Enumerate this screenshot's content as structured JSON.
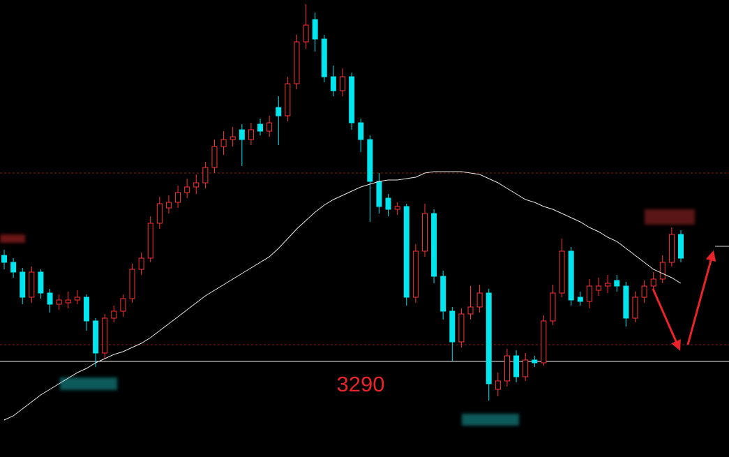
{
  "chart_data": {
    "type": "candlestick",
    "categories": [
      null,
      null,
      null,
      null,
      null,
      null,
      null,
      null,
      null,
      null,
      null,
      null,
      null,
      null,
      null,
      null,
      null,
      null,
      null,
      null,
      null,
      null,
      null,
      null,
      null,
      null,
      null,
      null,
      null,
      null,
      null,
      null,
      null,
      null,
      null,
      null,
      null,
      null,
      null,
      null,
      null,
      null,
      null,
      null,
      null,
      null,
      null,
      null,
      null,
      null,
      null,
      null,
      null,
      null,
      null,
      null,
      null,
      null,
      null,
      null,
      null,
      null,
      null,
      null,
      null,
      null,
      null,
      null,
      null,
      null,
      null,
      null,
      null,
      null,
      null
    ],
    "open": [
      3366,
      3361,
      3354,
      3336,
      3354,
      3339,
      3331,
      3332,
      3334,
      3336,
      3319,
      3296,
      3321,
      3326,
      3335,
      3356,
      3364,
      3389,
      3400,
      3404,
      3411,
      3415,
      3418,
      3429,
      3444,
      3449,
      3456,
      3449,
      3460,
      3455,
      3472,
      3466,
      3489,
      3519,
      3535,
      3521,
      3494,
      3484,
      3494,
      3461,
      3449,
      3419,
      3407,
      3399,
      3401,
      3336,
      3369,
      3396,
      3351,
      3326,
      3304,
      3324,
      3329,
      3339,
      3270,
      3276,
      3294,
      3279,
      3291,
      3289,
      3319,
      3339,
      3369,
      3336,
      3333,
      3341,
      3344,
      3348,
      3344,
      3321,
      3336,
      3344,
      3349,
      3361,
      3381
    ],
    "high": [
      3370,
      3364,
      3357,
      3358,
      3356,
      3342,
      3338,
      3340,
      3341,
      3338,
      3321,
      3324,
      3330,
      3338,
      3360,
      3368,
      3394,
      3408,
      3409,
      3416,
      3421,
      3424,
      3433,
      3449,
      3455,
      3458,
      3460,
      3461,
      3464,
      3466,
      3480,
      3494,
      3524,
      3546,
      3540,
      3524,
      3502,
      3500,
      3497,
      3464,
      3452,
      3425,
      3410,
      3404,
      3403,
      3374,
      3403,
      3399,
      3355,
      3329,
      3328,
      3344,
      3345,
      3342,
      3282,
      3299,
      3298,
      3296,
      3294,
      3323,
      3345,
      3378,
      3372,
      3340,
      3349,
      3350,
      3352,
      3352,
      3347,
      3340,
      3348,
      3354,
      3366,
      3386,
      3384
    ],
    "low": [
      3356,
      3350,
      3331,
      3332,
      3335,
      3325,
      3327,
      3328,
      3331,
      3312,
      3286,
      3292,
      3318,
      3322,
      3332,
      3352,
      3361,
      3385,
      3396,
      3400,
      3407,
      3410,
      3414,
      3425,
      3438,
      3444,
      3430,
      3445,
      3452,
      3451,
      3445,
      3462,
      3485,
      3514,
      3512,
      3490,
      3480,
      3480,
      3456,
      3440,
      3390,
      3396,
      3394,
      3395,
      3330,
      3332,
      3365,
      3346,
      3320,
      3290,
      3300,
      3320,
      3325,
      3262,
      3265,
      3272,
      3275,
      3276,
      3286,
      3287,
      3316,
      3336,
      3330,
      3330,
      3328,
      3337,
      3339,
      3340,
      3315,
      3318,
      3332,
      3340,
      3346,
      3358,
      3361
    ],
    "close": [
      3361,
      3354,
      3336,
      3354,
      3339,
      3331,
      3334,
      3334,
      3336,
      3319,
      3296,
      3321,
      3326,
      3335,
      3356,
      3364,
      3389,
      3403,
      3404,
      3411,
      3415,
      3418,
      3429,
      3444,
      3449,
      3451,
      3449,
      3456,
      3455,
      3461,
      3466,
      3489,
      3519,
      3531,
      3521,
      3494,
      3484,
      3494,
      3461,
      3449,
      3419,
      3401,
      3399,
      3401,
      3336,
      3369,
      3396,
      3351,
      3326,
      3304,
      3324,
      3329,
      3339,
      3274,
      3276,
      3294,
      3279,
      3291,
      3289,
      3319,
      3339,
      3369,
      3334,
      3333,
      3344,
      3344,
      3346,
      3344,
      3321,
      3336,
      3344,
      3349,
      3361,
      3381,
      3364
    ],
    "up_color": "#ff3232",
    "down_color": "#00e5ee",
    "line": {
      "color": "#e8e8e8",
      "values": [
        3248,
        3251,
        3256,
        3261,
        3266,
        3270,
        3274,
        3278,
        3282,
        3285,
        3289,
        3292,
        3295,
        3297,
        3300,
        3303,
        3307,
        3312,
        3317,
        3322,
        3327,
        3332,
        3337,
        3341,
        3345,
        3349,
        3353,
        3357,
        3361,
        3365,
        3371,
        3378,
        3385,
        3391,
        3397,
        3402,
        3406,
        3409,
        3412,
        3415,
        3417,
        3419,
        3420,
        3420,
        3421,
        3422,
        3425,
        3426,
        3426,
        3426,
        3426,
        3425,
        3424,
        3421,
        3418,
        3414,
        3410,
        3406,
        3404,
        3401,
        3399,
        3396,
        3393,
        3390,
        3386,
        3383,
        3379,
        3376,
        3371,
        3366,
        3361,
        3356,
        3353,
        3350,
        3346
      ]
    },
    "dashed_lines": [
      {
        "value": 3425,
        "color": "#8b1a1a"
      },
      {
        "value": 3302,
        "color": "#8b1a1a"
      }
    ],
    "reference_line": {
      "value": 3290,
      "color": "#f0f0f0",
      "label_color": "#e8242a"
    },
    "ylim": [
      3221.5,
      3549
    ]
  }
}
